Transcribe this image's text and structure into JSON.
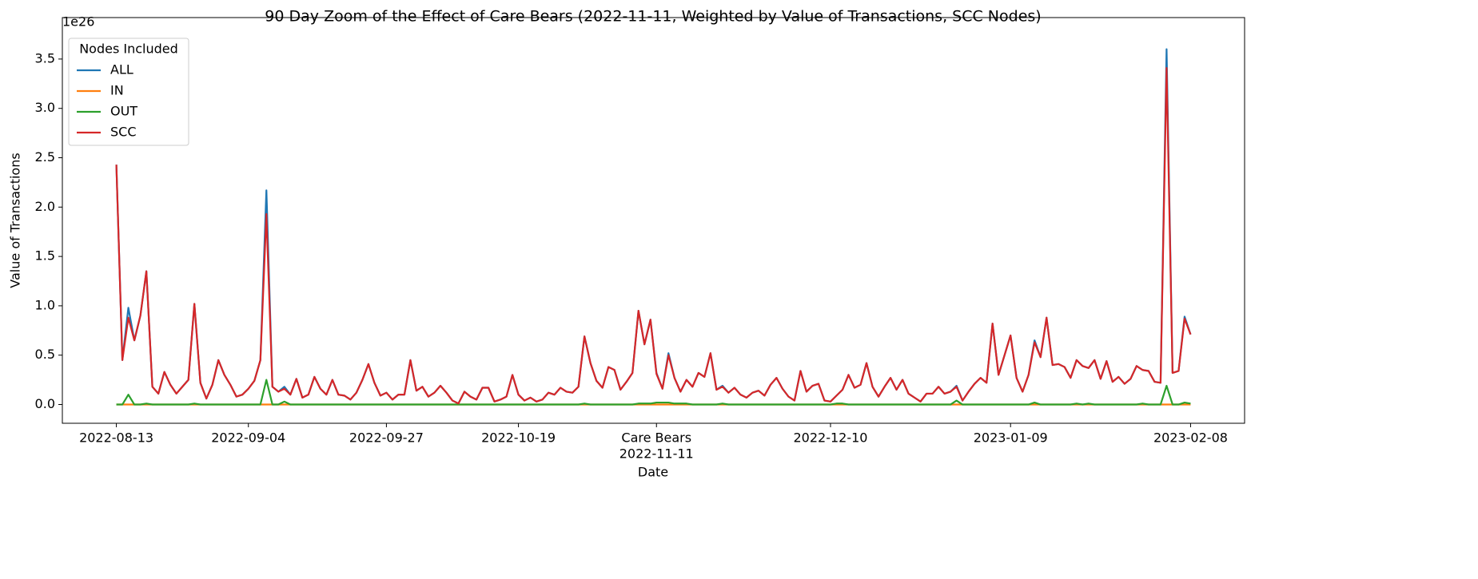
{
  "chart_data": {
    "type": "line",
    "title": "90 Day Zoom of the Effect of Care Bears (2022-11-11, Weighted by Value of Transactions, SCC Nodes)",
    "xlabel": "Date",
    "ylabel": "Value of Transactions",
    "y_offset_label": "1e26",
    "legend_title": "Nodes Included",
    "legend": "upper left",
    "x": [
      "2022-08-13",
      "2022-08-14",
      "2022-08-15",
      "2022-08-16",
      "2022-08-17",
      "2022-08-18",
      "2022-08-19",
      "2022-08-20",
      "2022-08-21",
      "2022-08-22",
      "2022-08-23",
      "2022-08-24",
      "2022-08-25",
      "2022-08-26",
      "2022-08-27",
      "2022-08-28",
      "2022-08-29",
      "2022-08-30",
      "2022-08-31",
      "2022-09-01",
      "2022-09-02",
      "2022-09-03",
      "2022-09-04",
      "2022-09-05",
      "2022-09-06",
      "2022-09-07",
      "2022-09-08",
      "2022-09-09",
      "2022-09-10",
      "2022-09-11",
      "2022-09-12",
      "2022-09-13",
      "2022-09-14",
      "2022-09-15",
      "2022-09-16",
      "2022-09-17",
      "2022-09-18",
      "2022-09-19",
      "2022-09-20",
      "2022-09-21",
      "2022-09-22",
      "2022-09-23",
      "2022-09-24",
      "2022-09-25",
      "2022-09-26",
      "2022-09-27",
      "2022-09-28",
      "2022-09-29",
      "2022-09-30",
      "2022-10-01",
      "2022-10-02",
      "2022-10-03",
      "2022-10-04",
      "2022-10-05",
      "2022-10-06",
      "2022-10-07",
      "2022-10-08",
      "2022-10-09",
      "2022-10-10",
      "2022-10-11",
      "2022-10-12",
      "2022-10-13",
      "2022-10-14",
      "2022-10-15",
      "2022-10-16",
      "2022-10-17",
      "2022-10-18",
      "2022-10-19",
      "2022-10-20",
      "2022-10-21",
      "2022-10-22",
      "2022-10-23",
      "2022-10-24",
      "2022-10-25",
      "2022-10-26",
      "2022-10-27",
      "2022-10-28",
      "2022-10-29",
      "2022-10-30",
      "2022-10-31",
      "2022-11-01",
      "2022-11-02",
      "2022-11-03",
      "2022-11-04",
      "2022-11-05",
      "2022-11-06",
      "2022-11-07",
      "2022-11-08",
      "2022-11-09",
      "2022-11-10",
      "2022-11-11",
      "2022-11-12",
      "2022-11-13",
      "2022-11-14",
      "2022-11-15",
      "2022-11-16",
      "2022-11-17",
      "2022-11-18",
      "2022-11-19",
      "2022-11-20",
      "2022-11-21",
      "2022-11-22",
      "2022-11-23",
      "2022-11-24",
      "2022-11-25",
      "2022-11-26",
      "2022-11-27",
      "2022-11-28",
      "2022-11-29",
      "2022-11-30",
      "2022-12-01",
      "2022-12-02",
      "2022-12-03",
      "2022-12-04",
      "2022-12-05",
      "2022-12-06",
      "2022-12-07",
      "2022-12-08",
      "2022-12-09",
      "2022-12-10",
      "2022-12-11",
      "2022-12-12",
      "2022-12-13",
      "2022-12-14",
      "2022-12-15",
      "2022-12-16",
      "2022-12-17",
      "2022-12-18",
      "2022-12-19",
      "2022-12-20",
      "2022-12-21",
      "2022-12-22",
      "2022-12-23",
      "2022-12-24",
      "2022-12-25",
      "2022-12-26",
      "2022-12-27",
      "2022-12-28",
      "2022-12-29",
      "2022-12-30",
      "2022-12-31",
      "2023-01-01",
      "2023-01-02",
      "2023-01-03",
      "2023-01-04",
      "2023-01-05",
      "2023-01-06",
      "2023-01-07",
      "2023-01-08",
      "2023-01-09",
      "2023-01-10",
      "2023-01-11",
      "2023-01-12",
      "2023-01-13",
      "2023-01-14",
      "2023-01-15",
      "2023-01-16",
      "2023-01-17",
      "2023-01-18",
      "2023-01-19",
      "2023-01-20",
      "2023-01-21",
      "2023-01-22",
      "2023-01-23",
      "2023-01-24",
      "2023-01-25",
      "2023-01-26",
      "2023-01-27",
      "2023-01-28",
      "2023-01-29",
      "2023-01-30",
      "2023-01-31",
      "2023-02-01",
      "2023-02-02",
      "2023-02-03",
      "2023-02-04",
      "2023-02-05",
      "2023-02-06",
      "2023-02-07",
      "2023-02-08"
    ],
    "series": [
      {
        "name": "ALL",
        "color": "#1f77b4",
        "values": [
          2.43,
          0.45,
          0.98,
          0.65,
          0.9,
          1.35,
          0.18,
          0.11,
          0.33,
          0.2,
          0.11,
          0.18,
          0.25,
          1.02,
          0.22,
          0.06,
          0.2,
          0.45,
          0.3,
          0.2,
          0.08,
          0.1,
          0.16,
          0.24,
          0.45,
          2.17,
          0.18,
          0.13,
          0.18,
          0.1,
          0.26,
          0.07,
          0.1,
          0.28,
          0.16,
          0.1,
          0.25,
          0.1,
          0.09,
          0.05,
          0.12,
          0.25,
          0.41,
          0.22,
          0.09,
          0.12,
          0.05,
          0.1,
          0.1,
          0.45,
          0.14,
          0.18,
          0.08,
          0.12,
          0.19,
          0.12,
          0.04,
          0.01,
          0.13,
          0.08,
          0.05,
          0.17,
          0.17,
          0.03,
          0.05,
          0.08,
          0.3,
          0.1,
          0.04,
          0.07,
          0.03,
          0.05,
          0.12,
          0.1,
          0.17,
          0.13,
          0.12,
          0.18,
          0.69,
          0.42,
          0.24,
          0.17,
          0.38,
          0.35,
          0.15,
          0.23,
          0.32,
          0.95,
          0.61,
          0.86,
          0.32,
          0.16,
          0.52,
          0.27,
          0.13,
          0.25,
          0.18,
          0.32,
          0.28,
          0.52,
          0.15,
          0.19,
          0.12,
          0.17,
          0.1,
          0.07,
          0.12,
          0.14,
          0.09,
          0.2,
          0.27,
          0.16,
          0.08,
          0.04,
          0.34,
          0.13,
          0.19,
          0.21,
          0.04,
          0.03,
          0.09,
          0.15,
          0.3,
          0.17,
          0.2,
          0.42,
          0.18,
          0.08,
          0.18,
          0.27,
          0.15,
          0.25,
          0.11,
          0.07,
          0.03,
          0.11,
          0.11,
          0.18,
          0.11,
          0.13,
          0.19,
          0.04,
          0.13,
          0.21,
          0.27,
          0.22,
          0.82,
          0.3,
          0.5,
          0.7,
          0.27,
          0.13,
          0.3,
          0.65,
          0.48,
          0.88,
          0.4,
          0.41,
          0.38,
          0.27,
          0.45,
          0.39,
          0.37,
          0.45,
          0.26,
          0.44,
          0.23,
          0.28,
          0.21,
          0.26,
          0.39,
          0.35,
          0.34,
          0.23,
          0.22,
          3.6,
          0.32,
          0.34,
          0.89,
          0.71
        ]
      },
      {
        "name": "IN",
        "color": "#ff7f0e",
        "values": [
          0,
          0,
          0,
          0,
          0,
          0,
          0,
          0,
          0,
          0,
          0,
          0,
          0,
          0,
          0,
          0,
          0,
          0,
          0,
          0,
          0,
          0,
          0,
          0,
          0,
          0,
          0,
          0,
          0,
          0,
          0,
          0,
          0,
          0,
          0,
          0,
          0,
          0,
          0,
          0,
          0,
          0,
          0,
          0,
          0,
          0,
          0,
          0,
          0,
          0,
          0,
          0,
          0,
          0,
          0,
          0,
          0,
          0,
          0,
          0,
          0,
          0,
          0,
          0,
          0,
          0,
          0,
          0,
          0,
          0,
          0,
          0,
          0,
          0,
          0,
          0,
          0,
          0,
          0,
          0,
          0,
          0,
          0,
          0,
          0,
          0,
          0,
          0,
          0,
          0,
          0,
          0,
          0,
          0,
          0,
          0,
          0,
          0,
          0,
          0,
          0,
          0,
          0,
          0,
          0,
          0,
          0,
          0,
          0,
          0,
          0,
          0,
          0,
          0,
          0,
          0,
          0,
          0,
          0,
          0,
          0,
          0,
          0,
          0,
          0,
          0,
          0,
          0,
          0,
          0,
          0,
          0,
          0,
          0,
          0,
          0,
          0,
          0,
          0,
          0,
          0,
          0,
          0,
          0,
          0,
          0,
          0,
          0,
          0,
          0,
          0,
          0,
          0,
          0,
          0,
          0,
          0,
          0,
          0,
          0,
          0,
          0,
          0,
          0,
          0,
          0,
          0,
          0,
          0,
          0,
          0,
          0,
          0,
          0,
          0,
          0,
          0,
          0,
          0,
          0
        ]
      },
      {
        "name": "OUT",
        "color": "#2ca02c",
        "values": [
          0,
          0,
          0.1,
          0,
          0,
          0.01,
          0,
          0,
          0,
          0,
          0,
          0,
          0,
          0.01,
          0,
          0,
          0,
          0,
          0,
          0,
          0,
          0,
          0,
          0,
          0,
          0.25,
          0,
          0,
          0.03,
          0,
          0,
          0,
          0,
          0,
          0,
          0,
          0,
          0,
          0,
          0,
          0,
          0,
          0,
          0,
          0,
          0,
          0,
          0,
          0,
          0,
          0,
          0,
          0,
          0,
          0,
          0,
          0,
          0,
          0,
          0,
          0,
          0,
          0,
          0,
          0,
          0,
          0,
          0,
          0,
          0,
          0,
          0,
          0,
          0,
          0,
          0,
          0,
          0,
          0.01,
          0,
          0,
          0,
          0,
          0,
          0,
          0,
          0,
          0.01,
          0.01,
          0.01,
          0.02,
          0.02,
          0.02,
          0.01,
          0.01,
          0.01,
          0,
          0,
          0,
          0,
          0,
          0.01,
          0,
          0,
          0,
          0,
          0,
          0,
          0,
          0,
          0,
          0,
          0,
          0,
          0,
          0,
          0,
          0,
          0,
          0,
          0.01,
          0.01,
          0,
          0,
          0,
          0,
          0,
          0,
          0,
          0,
          0,
          0,
          0,
          0,
          0,
          0,
          0,
          0,
          0,
          0,
          0.04,
          0,
          0,
          0,
          0,
          0,
          0,
          0,
          0,
          0,
          0,
          0,
          0,
          0.02,
          0,
          0,
          0,
          0,
          0,
          0,
          0.01,
          0,
          0.01,
          0,
          0,
          0,
          0,
          0,
          0,
          0,
          0,
          0.01,
          0,
          0,
          0,
          0.19,
          0,
          0,
          0.02,
          0.01
        ]
      },
      {
        "name": "SCC",
        "color": "#d62728",
        "values": [
          2.43,
          0.45,
          0.88,
          0.65,
          0.9,
          1.35,
          0.18,
          0.11,
          0.33,
          0.2,
          0.11,
          0.18,
          0.25,
          1.02,
          0.22,
          0.06,
          0.2,
          0.45,
          0.3,
          0.2,
          0.08,
          0.1,
          0.16,
          0.24,
          0.45,
          1.93,
          0.18,
          0.13,
          0.16,
          0.1,
          0.26,
          0.07,
          0.1,
          0.28,
          0.16,
          0.1,
          0.25,
          0.1,
          0.09,
          0.05,
          0.12,
          0.25,
          0.41,
          0.22,
          0.09,
          0.12,
          0.05,
          0.1,
          0.1,
          0.45,
          0.14,
          0.18,
          0.08,
          0.12,
          0.19,
          0.12,
          0.04,
          0.01,
          0.13,
          0.08,
          0.05,
          0.17,
          0.17,
          0.03,
          0.05,
          0.08,
          0.3,
          0.1,
          0.04,
          0.07,
          0.03,
          0.05,
          0.12,
          0.1,
          0.17,
          0.13,
          0.12,
          0.18,
          0.69,
          0.42,
          0.24,
          0.17,
          0.38,
          0.35,
          0.15,
          0.23,
          0.32,
          0.95,
          0.61,
          0.86,
          0.31,
          0.16,
          0.5,
          0.27,
          0.13,
          0.25,
          0.18,
          0.32,
          0.28,
          0.52,
          0.15,
          0.18,
          0.12,
          0.17,
          0.1,
          0.07,
          0.12,
          0.14,
          0.09,
          0.2,
          0.27,
          0.16,
          0.08,
          0.04,
          0.34,
          0.13,
          0.19,
          0.21,
          0.04,
          0.03,
          0.09,
          0.15,
          0.3,
          0.17,
          0.2,
          0.42,
          0.18,
          0.08,
          0.18,
          0.27,
          0.15,
          0.25,
          0.11,
          0.07,
          0.03,
          0.11,
          0.11,
          0.18,
          0.11,
          0.13,
          0.18,
          0.04,
          0.13,
          0.21,
          0.27,
          0.22,
          0.82,
          0.3,
          0.5,
          0.7,
          0.27,
          0.13,
          0.3,
          0.63,
          0.48,
          0.88,
          0.4,
          0.41,
          0.38,
          0.27,
          0.45,
          0.39,
          0.37,
          0.45,
          0.26,
          0.44,
          0.23,
          0.28,
          0.21,
          0.26,
          0.39,
          0.35,
          0.34,
          0.23,
          0.22,
          3.41,
          0.32,
          0.34,
          0.87,
          0.71
        ]
      }
    ],
    "xlim": [
      "2022-08-04",
      "2023-02-17"
    ],
    "xticks": [
      "2022-08-13",
      "2022-09-04",
      "2022-09-27",
      "2022-10-19",
      {
        "value": "2022-11-11",
        "label": [
          "Care Bears",
          "2022-11-11"
        ]
      },
      "2022-12-10",
      "2023-01-09",
      "2023-02-08"
    ],
    "ylim": [
      -0.19,
      3.92
    ],
    "yticks": [
      {
        "value": 0,
        "label": "0.0"
      },
      0.5,
      {
        "value": 1,
        "label": "1.0"
      },
      1.5,
      {
        "value": 2,
        "label": "2.0"
      },
      2.5,
      {
        "value": 3,
        "label": "3.0"
      },
      3.5
    ]
  }
}
